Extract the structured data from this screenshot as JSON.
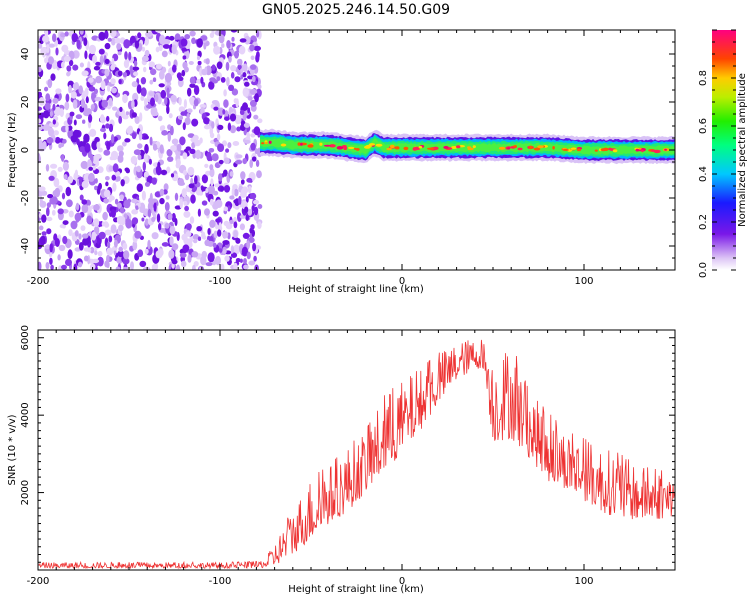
{
  "figure": {
    "title": "GN05.2025.246.14.50.G09"
  },
  "chart_data": [
    {
      "type": "heatmap",
      "xlabel": "Height of straight line (km)",
      "ylabel": "Frequency (Hz)",
      "xlim": [
        -200,
        150
      ],
      "ylim": [
        -50,
        50
      ],
      "xticks": [
        "-200",
        "-100",
        "0",
        "100"
      ],
      "yticks": [
        "-40",
        "-20",
        "0",
        "20",
        "40"
      ],
      "noise_region_x": [
        -200,
        -78
      ],
      "signal_track": {
        "x": [
          -78,
          -70,
          -60,
          -50,
          -40,
          -30,
          -20,
          -15,
          -10,
          0,
          20,
          40,
          60,
          80,
          100,
          120,
          150
        ],
        "freq": [
          3,
          3,
          2,
          2,
          2,
          1,
          0,
          3,
          1,
          1,
          1,
          1,
          1,
          1,
          0,
          0,
          0
        ]
      },
      "colorbar": {
        "label": "Normalized spectral amplitude",
        "ticks": [
          "0.0",
          "0.2",
          "0.4",
          "0.6",
          "0.8"
        ],
        "range": [
          0,
          1
        ]
      }
    },
    {
      "type": "line",
      "xlabel": "Height of straight line (km)",
      "ylabel": "SNR (10 * v/v)",
      "xlim": [
        -200,
        150
      ],
      "ylim": [
        0,
        6200
      ],
      "xticks": [
        "-200",
        "-100",
        "0",
        "100"
      ],
      "yticks": [
        "2000",
        "4000",
        "6000"
      ],
      "series": [
        {
          "name": "SNR",
          "color": "#ee3333",
          "envelope_x": [
            -200,
            -150,
            -100,
            -80,
            -75,
            -70,
            -60,
            -50,
            -40,
            -30,
            -20,
            -10,
            0,
            10,
            20,
            30,
            40,
            45,
            50,
            60,
            70,
            80,
            90,
            100,
            110,
            120,
            130,
            140,
            150
          ],
          "envelope_min": [
            50,
            50,
            50,
            50,
            60,
            100,
            400,
            800,
            1200,
            1500,
            2000,
            2500,
            3000,
            3600,
            4300,
            4900,
            5200,
            5200,
            3300,
            3400,
            2900,
            2300,
            2100,
            1800,
            1500,
            1300,
            1300,
            1300,
            1400
          ],
          "envelope_max": [
            200,
            200,
            200,
            220,
            300,
            700,
            1600,
            2400,
            2700,
            3200,
            3600,
            4500,
            4900,
            5200,
            5600,
            5900,
            6000,
            6000,
            5500,
            5900,
            4600,
            4100,
            3600,
            3400,
            3200,
            3000,
            2700,
            2600,
            2500
          ]
        }
      ]
    }
  ]
}
